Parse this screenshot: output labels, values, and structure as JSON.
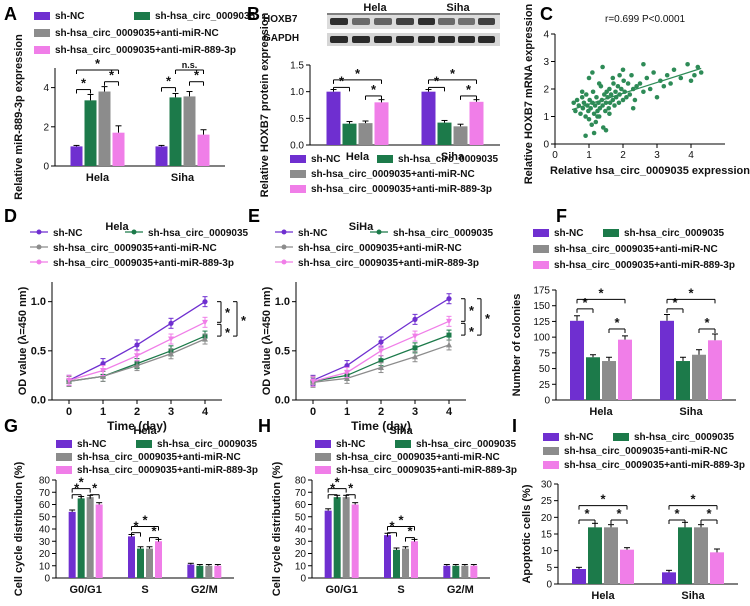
{
  "colors": {
    "purple": "#6f2fd0",
    "green": "#1c7a4a",
    "gray": "#8c8c8c",
    "pink": "#f07ee8",
    "scatter": "#2e8b57"
  },
  "series_names": [
    "sh-NC",
    "sh-hsa_circ_0009035",
    "sh-hsa_circ_0009035+anti-miR-NC",
    "sh-hsa_circ_0009035+anti-miR-889-3p"
  ],
  "chart_data": [
    {
      "panel": "A",
      "type": "bar",
      "ylabel": "Relative miR-889-3p expression",
      "categories": [
        "Hela",
        "Siha"
      ],
      "ylim": [
        0,
        5
      ],
      "yticks": [
        0,
        2,
        4
      ],
      "series": [
        {
          "name": "sh-NC",
          "values": [
            1.0,
            1.0
          ],
          "err": [
            0.05,
            0.05
          ]
        },
        {
          "name": "sh-hsa_circ_0009035",
          "values": [
            3.35,
            3.5
          ],
          "err": [
            0.3,
            0.2
          ]
        },
        {
          "name": "sh-hsa_circ_0009035+anti-miR-NC",
          "values": [
            3.8,
            3.55
          ],
          "err": [
            0.25,
            0.25
          ]
        },
        {
          "name": "sh-hsa_circ_0009035+anti-miR-889-3p",
          "values": [
            1.7,
            1.6
          ],
          "err": [
            0.35,
            0.25
          ]
        }
      ],
      "annotations": [
        "*",
        "*",
        "*",
        "*",
        "n.s.",
        "*"
      ]
    },
    {
      "panel": "B",
      "type": "bar",
      "blot_labels": [
        "HOXB7",
        "GAPDH"
      ],
      "blot_groups": [
        "Hela",
        "Siha"
      ],
      "ylabel": "Relative HOXB7 protein expression",
      "categories": [
        "Hela",
        "Siha"
      ],
      "ylim": [
        0,
        1.5
      ],
      "yticks": [
        0.0,
        0.5,
        1.0,
        1.5
      ],
      "series": [
        {
          "name": "sh-NC",
          "values": [
            1.0,
            1.0
          ],
          "err": [
            0.04,
            0.04
          ]
        },
        {
          "name": "sh-hsa_circ_0009035",
          "values": [
            0.4,
            0.42
          ],
          "err": [
            0.04,
            0.04
          ]
        },
        {
          "name": "sh-hsa_circ_0009035+anti-miR-NC",
          "values": [
            0.41,
            0.35
          ],
          "err": [
            0.04,
            0.04
          ]
        },
        {
          "name": "sh-hsa_circ_0009035+anti-miR-889-3p",
          "values": [
            0.8,
            0.81
          ],
          "err": [
            0.05,
            0.04
          ]
        }
      ]
    },
    {
      "panel": "C",
      "type": "scatter",
      "annotation": "r=0.699  P<0.0001",
      "xlabel": "Relative hsa_circ_0009035 expression",
      "ylabel": "Relative HOXB7 mRNA expression",
      "xlim": [
        0,
        5
      ],
      "ylim": [
        0,
        4
      ],
      "xticks": [
        0,
        1,
        2,
        3,
        4
      ],
      "yticks": [
        0,
        1,
        2,
        3,
        4
      ],
      "fit": {
        "x": [
          0.5,
          4.3
        ],
        "y": [
          1.25,
          2.75
        ]
      },
      "x": [
        0.55,
        0.6,
        0.65,
        0.7,
        0.75,
        0.8,
        0.82,
        0.85,
        0.9,
        0.92,
        0.95,
        0.98,
        1.0,
        1.02,
        1.05,
        1.08,
        1.1,
        1.12,
        1.15,
        1.18,
        1.2,
        1.22,
        1.25,
        1.28,
        1.3,
        1.32,
        1.35,
        1.38,
        1.4,
        1.42,
        1.45,
        1.48,
        1.5,
        1.52,
        1.55,
        1.58,
        1.6,
        1.62,
        1.65,
        1.7,
        1.72,
        1.75,
        1.78,
        1.8,
        1.85,
        1.88,
        1.9,
        1.95,
        2.0,
        2.02,
        2.05,
        2.1,
        2.15,
        2.2,
        2.25,
        2.3,
        2.35,
        2.4,
        2.5,
        2.6,
        2.7,
        2.8,
        2.9,
        3.0,
        3.1,
        3.2,
        3.3,
        3.4,
        3.5,
        3.7,
        3.9,
        4.0,
        4.1,
        4.2,
        4.3,
        0.9,
        1.0,
        1.1,
        1.3,
        1.5,
        1.7,
        2.0,
        2.3,
        2.6,
        1.15,
        1.4,
        1.6,
        0.8,
        1.25,
        1.9
      ],
      "y": [
        1.5,
        1.2,
        1.6,
        1.4,
        1.1,
        1.7,
        1.3,
        1.5,
        1.0,
        1.8,
        1.4,
        1.2,
        0.9,
        1.6,
        1.3,
        0.7,
        1.5,
        1.9,
        1.1,
        1.4,
        0.8,
        1.7,
        1.2,
        1.5,
        1.0,
        1.3,
        2.1,
        1.6,
        1.4,
        0.6,
        1.8,
        1.2,
        1.5,
        1.9,
        1.7,
        1.3,
        2.0,
        1.5,
        1.8,
        1.6,
        2.2,
        1.4,
        1.9,
        1.7,
        2.1,
        1.5,
        1.8,
        2.0,
        1.6,
        2.3,
        1.9,
        1.7,
        2.2,
        1.8,
        2.5,
        2.0,
        1.6,
        2.1,
        2.2,
        1.9,
        2.4,
        2.0,
        2.6,
        1.7,
        2.3,
        2.1,
        2.5,
        2.2,
        2.7,
        2.4,
        2.9,
        2.3,
        2.5,
        2.8,
        2.6,
        0.3,
        2.4,
        2.6,
        2.2,
        0.5,
        2.4,
        2.7,
        1.3,
        2.9,
        0.4,
        2.8,
        1.1,
        1.9,
        1.0,
        2.5
      ]
    },
    {
      "panel": "D",
      "type": "line",
      "title": "Hela",
      "xlabel": "Time (day)",
      "ylabel": "OD value (λ=450 nm)",
      "x": [
        0,
        1,
        2,
        3,
        4
      ],
      "xlim": [
        -0.5,
        4.5
      ],
      "ylim": [
        0,
        1.2
      ],
      "yticks": [
        0.0,
        0.5,
        1.0
      ],
      "series": [
        {
          "name": "sh-NC",
          "values": [
            0.2,
            0.37,
            0.56,
            0.78,
            1.0
          ]
        },
        {
          "name": "sh-hsa_circ_0009035",
          "values": [
            0.19,
            0.24,
            0.37,
            0.5,
            0.65
          ]
        },
        {
          "name": "sh-hsa_circ_0009035+anti-miR-NC",
          "values": [
            0.19,
            0.24,
            0.35,
            0.47,
            0.62
          ]
        },
        {
          "name": "sh-hsa_circ_0009035+anti-miR-889-3p",
          "values": [
            0.2,
            0.3,
            0.45,
            0.62,
            0.79
          ]
        }
      ],
      "annotations": [
        "*",
        "*",
        "*"
      ]
    },
    {
      "panel": "E",
      "type": "line",
      "title": "SiHa",
      "xlabel": "Time (day)",
      "ylabel": "OD value (λ=450 nm)",
      "x": [
        0,
        1,
        2,
        3,
        4
      ],
      "xlim": [
        -0.5,
        4.5
      ],
      "ylim": [
        0,
        1.2
      ],
      "yticks": [
        0.0,
        0.5,
        1.0
      ],
      "series": [
        {
          "name": "sh-NC",
          "values": [
            0.2,
            0.35,
            0.59,
            0.82,
            1.03
          ]
        },
        {
          "name": "sh-hsa_circ_0009035",
          "values": [
            0.19,
            0.25,
            0.4,
            0.53,
            0.66
          ]
        },
        {
          "name": "sh-hsa_circ_0009035+anti-miR-NC",
          "values": [
            0.18,
            0.22,
            0.33,
            0.44,
            0.56
          ]
        },
        {
          "name": "sh-hsa_circ_0009035+anti-miR-889-3p",
          "values": [
            0.19,
            0.28,
            0.5,
            0.65,
            0.8
          ]
        }
      ],
      "annotations": [
        "*",
        "*",
        "*"
      ]
    },
    {
      "panel": "F",
      "type": "bar",
      "ylabel": "Number of colonies",
      "categories": [
        "Hela",
        "Siha"
      ],
      "ylim": [
        0,
        175
      ],
      "yticks": [
        0,
        25,
        50,
        75,
        100,
        125,
        150,
        175
      ],
      "series": [
        {
          "name": "sh-NC",
          "values": [
            126,
            126
          ],
          "err": [
            8,
            10
          ]
        },
        {
          "name": "sh-hsa_circ_0009035",
          "values": [
            68,
            62
          ],
          "err": [
            4,
            6
          ]
        },
        {
          "name": "sh-hsa_circ_0009035+anti-miR-NC",
          "values": [
            62,
            72
          ],
          "err": [
            6,
            8
          ]
        },
        {
          "name": "sh-hsa_circ_0009035+anti-miR-889-3p",
          "values": [
            96,
            95
          ],
          "err": [
            6,
            10
          ]
        }
      ]
    },
    {
      "panel": "G",
      "type": "bar",
      "title": "Hela",
      "ylabel": "Cell cycle distribution (%)",
      "categories": [
        "G0/G1",
        "S",
        "G2/M"
      ],
      "ylim": [
        0,
        80
      ],
      "yticks": [
        0,
        10,
        20,
        30,
        40,
        50,
        60,
        70,
        80
      ],
      "series": [
        {
          "name": "sh-NC",
          "values": [
            54,
            34,
            11
          ],
          "err": [
            1.5,
            1.5,
            1
          ]
        },
        {
          "name": "sh-hsa_circ_0009035",
          "values": [
            65,
            24,
            10
          ],
          "err": [
            1.5,
            1.5,
            1
          ]
        },
        {
          "name": "sh-hsa_circ_0009035+anti-miR-NC",
          "values": [
            66,
            24,
            10
          ],
          "err": [
            1.5,
            1.5,
            1
          ]
        },
        {
          "name": "sh-hsa_circ_0009035+anti-miR-889-3p",
          "values": [
            60,
            30,
            10
          ],
          "err": [
            1.5,
            1.5,
            1
          ]
        }
      ]
    },
    {
      "panel": "H",
      "type": "bar",
      "title": "Siha",
      "ylabel": "Cell cycle distribution (%)",
      "categories": [
        "G0/G1",
        "S",
        "G2/M"
      ],
      "ylim": [
        0,
        80
      ],
      "yticks": [
        0,
        10,
        20,
        30,
        40,
        50,
        60,
        70,
        80
      ],
      "series": [
        {
          "name": "sh-NC",
          "values": [
            55,
            35,
            10
          ],
          "err": [
            1.5,
            1.5,
            1
          ]
        },
        {
          "name": "sh-hsa_circ_0009035",
          "values": [
            66,
            23,
            10
          ],
          "err": [
            1.5,
            1.5,
            1
          ]
        },
        {
          "name": "sh-hsa_circ_0009035+anti-miR-NC",
          "values": [
            66,
            24,
            10
          ],
          "err": [
            1.5,
            1.5,
            1
          ]
        },
        {
          "name": "sh-hsa_circ_0009035+anti-miR-889-3p",
          "values": [
            60,
            30,
            10
          ],
          "err": [
            1.5,
            1.5,
            1
          ]
        }
      ]
    },
    {
      "panel": "I",
      "type": "bar",
      "ylabel": "Apoptotic cells (%)",
      "categories": [
        "Hela",
        "Siha"
      ],
      "ylim": [
        0,
        30
      ],
      "yticks": [
        0,
        5,
        10,
        15,
        20,
        25,
        30
      ],
      "series": [
        {
          "name": "sh-NC",
          "values": [
            4.5,
            3.5
          ],
          "err": [
            0.5,
            0.6
          ]
        },
        {
          "name": "sh-hsa_circ_0009035",
          "values": [
            17,
            17
          ],
          "err": [
            1.2,
            1.5
          ]
        },
        {
          "name": "sh-hsa_circ_0009035+anti-miR-NC",
          "values": [
            17,
            17
          ],
          "err": [
            0.8,
            0.8
          ]
        },
        {
          "name": "sh-hsa_circ_0009035+anti-miR-889-3p",
          "values": [
            10.3,
            9.5
          ],
          "err": [
            0.6,
            1.0
          ]
        }
      ]
    }
  ]
}
